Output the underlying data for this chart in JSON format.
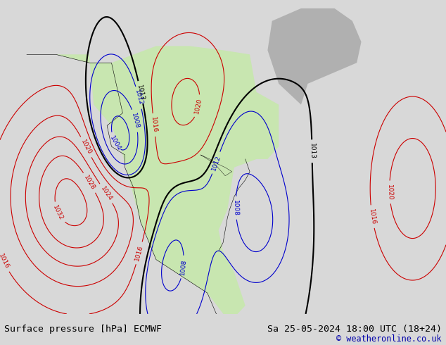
{
  "title_left": "Surface pressure [hPa] ECMWF",
  "title_right": "Sa 25-05-2024 18:00 UTC (18+24)",
  "copyright": "© weatheronline.co.uk",
  "bg_color": "#d8d8d8",
  "land_color": "#c8e6b0",
  "ocean_color": "#d8d8d8",
  "fig_width": 6.34,
  "fig_height": 4.9,
  "dpi": 100,
  "bottom_bar_color": "#f0f0f0",
  "title_fontsize": 9.5,
  "copyright_fontsize": 8.5,
  "contour_blue_color": "#0000cc",
  "contour_red_color": "#cc0000",
  "contour_black_color": "#000000",
  "label_fontsize": 6.5
}
